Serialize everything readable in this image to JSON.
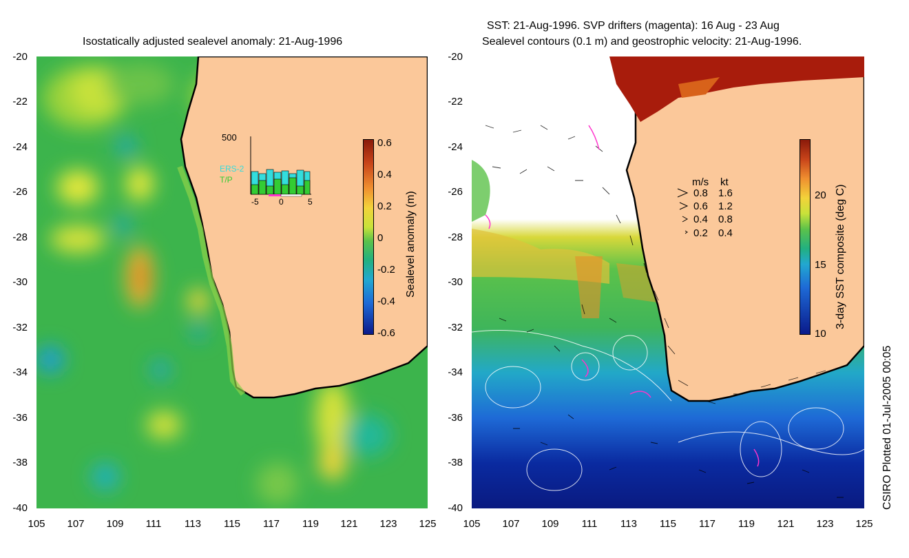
{
  "left_panel": {
    "title": "Isostatically adjusted sealevel anomaly: 21-Aug-1996",
    "colorbar_label": "Sealevel anomaly (m)",
    "colorbar_ticks": [
      "0.6",
      "0.4",
      "0.2",
      "0",
      "-0.2",
      "-0.4",
      "-0.6"
    ],
    "inset": {
      "ymax_label": "500",
      "series": [
        "ERS-2",
        "T/P"
      ],
      "series_colors": [
        "#33dddd",
        "#33cc33"
      ],
      "xticks": [
        "-5",
        "0",
        "5"
      ]
    }
  },
  "right_panel": {
    "title_line1": "SST: 21-Aug-1996. SVP drifters (magenta): 16 Aug - 23 Aug",
    "title_line2": "Sealevel contours (0.1 m) and geostrophic velocity: 21-Aug-1996.",
    "colorbar_label": "3-day SST composite (deg C)",
    "colorbar_ticks": [
      "20",
      "15",
      "10"
    ],
    "velocity_legend": {
      "header_ms": "m/s",
      "header_kt": "kt",
      "rows": [
        {
          "ms": "0.8",
          "kt": "1.6"
        },
        {
          "ms": "0.6",
          "kt": "1.2"
        },
        {
          "ms": "0.4",
          "kt": "0.8"
        },
        {
          "ms": "0.2",
          "kt": "0.4"
        }
      ]
    }
  },
  "axes": {
    "yticks": [
      "-20",
      "-22",
      "-24",
      "-26",
      "-28",
      "-30",
      "-32",
      "-34",
      "-36",
      "-38",
      "-40"
    ],
    "xticks": [
      "105",
      "107",
      "109",
      "111",
      "113",
      "115",
      "117",
      "119",
      "121",
      "123",
      "125"
    ]
  },
  "footer": "CSIRO Plotted 01-Jul-2005 00:05",
  "colors": {
    "land": "#fbc89a",
    "ocean_left": "#36b54a",
    "cloud": "#ffffff",
    "hot_land": "#a81c0c"
  }
}
